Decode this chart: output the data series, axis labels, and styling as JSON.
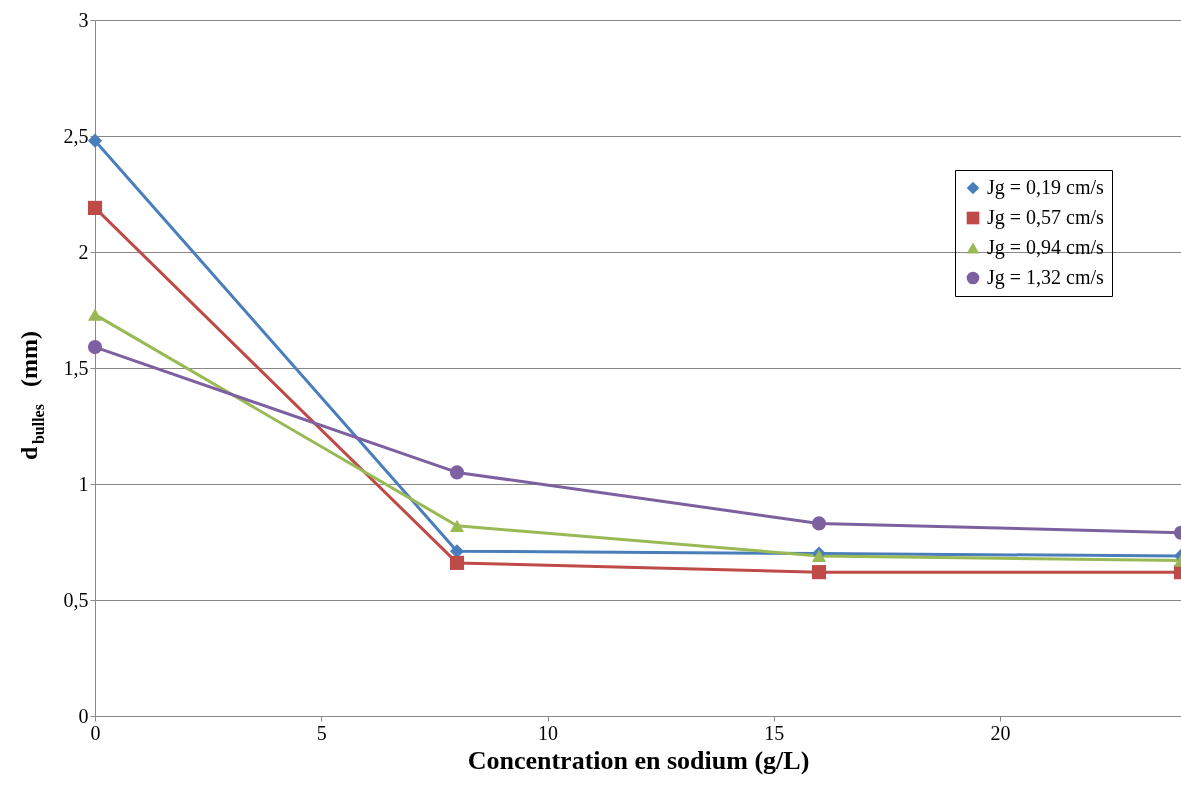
{
  "chart_data": {
    "type": "line",
    "xlabel": "Concentration en sodium (g/L)",
    "ylabel": "d$_{bulles}$ (mm)",
    "x": [
      0,
      8,
      16,
      24
    ],
    "series": [
      {
        "name": "Jg = 0,19 cm/s",
        "color": "#4a7ebb",
        "marker": "diamond",
        "values": [
          2.48,
          0.71,
          0.7,
          0.69
        ]
      },
      {
        "name": "Jg = 0,57 cm/s",
        "color": "#be4b48",
        "marker": "square",
        "values": [
          2.19,
          0.66,
          0.62,
          0.62
        ]
      },
      {
        "name": "Jg = 0,94 cm/s",
        "color": "#98b954",
        "marker": "triangle",
        "values": [
          1.73,
          0.82,
          0.69,
          0.67
        ]
      },
      {
        "name": "Jg = 1,32 cm/s",
        "color": "#7d60a0",
        "marker": "circle",
        "values": [
          1.59,
          1.05,
          0.83,
          0.79
        ]
      }
    ],
    "xlim": [
      0,
      24
    ],
    "xticks": [
      0,
      5,
      10,
      15,
      20
    ],
    "ylim": [
      0,
      3
    ],
    "yticks": [
      {
        "value": 0,
        "label": "0"
      },
      {
        "value": 0.5,
        "label": "0,5"
      },
      {
        "value": 1,
        "label": "1"
      },
      {
        "value": 1.5,
        "label": "1,5"
      },
      {
        "value": 2,
        "label": "2"
      },
      {
        "value": 2.5,
        "label": "2,5"
      },
      {
        "value": 3,
        "label": "3"
      }
    ],
    "grid": "y",
    "legend": "right",
    "line_style": "solid"
  }
}
